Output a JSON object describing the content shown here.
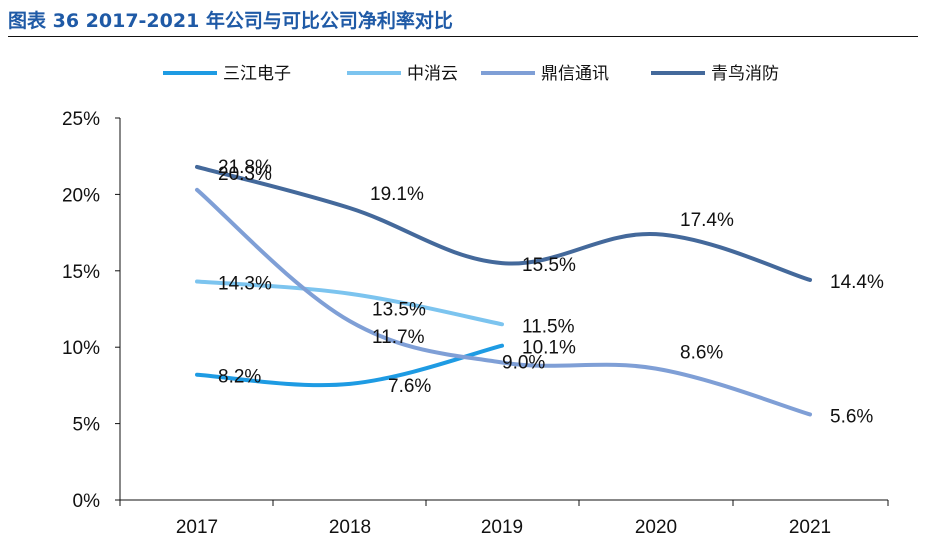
{
  "header": {
    "title": "图表 36 2017-2021 年公司与可比公司净利率对比"
  },
  "colors": {
    "三江电子": "#1e9be3",
    "中消云": "#7cc4ef",
    "鼎信通讯": "#7f9fd6",
    "青鸟消防": "#44699b",
    "title": "#1f5aa6"
  },
  "chart_data": {
    "type": "line",
    "categories": [
      "2017",
      "2018",
      "2019",
      "2020",
      "2021"
    ],
    "ylim": [
      0,
      25
    ],
    "yticks": [
      "0%",
      "5%",
      "10%",
      "15%",
      "20%",
      "25%"
    ],
    "ytick_values": [
      0,
      5,
      10,
      15,
      20,
      25
    ],
    "grid": false,
    "legend_position": "top",
    "series": [
      {
        "name": "三江电子",
        "values": [
          8.2,
          7.6,
          10.1,
          null,
          null
        ],
        "labels": [
          "8.2%",
          "7.6%",
          "10.1%",
          null,
          null
        ]
      },
      {
        "name": "中消云",
        "values": [
          14.3,
          13.5,
          11.5,
          null,
          null
        ],
        "labels": [
          "14.3%",
          "13.5%",
          "11.5%",
          null,
          null
        ]
      },
      {
        "name": "鼎信通讯",
        "values": [
          20.3,
          11.7,
          9.0,
          8.6,
          5.6
        ],
        "labels": [
          "20.3%",
          "11.7%",
          "9.0%",
          "8.6%",
          "5.6%"
        ]
      },
      {
        "name": "青鸟消防",
        "values": [
          21.8,
          19.1,
          15.5,
          17.4,
          14.4
        ],
        "labels": [
          "21.8%",
          "19.1%",
          "15.5%",
          "17.4%",
          "14.4%"
        ]
      }
    ]
  }
}
